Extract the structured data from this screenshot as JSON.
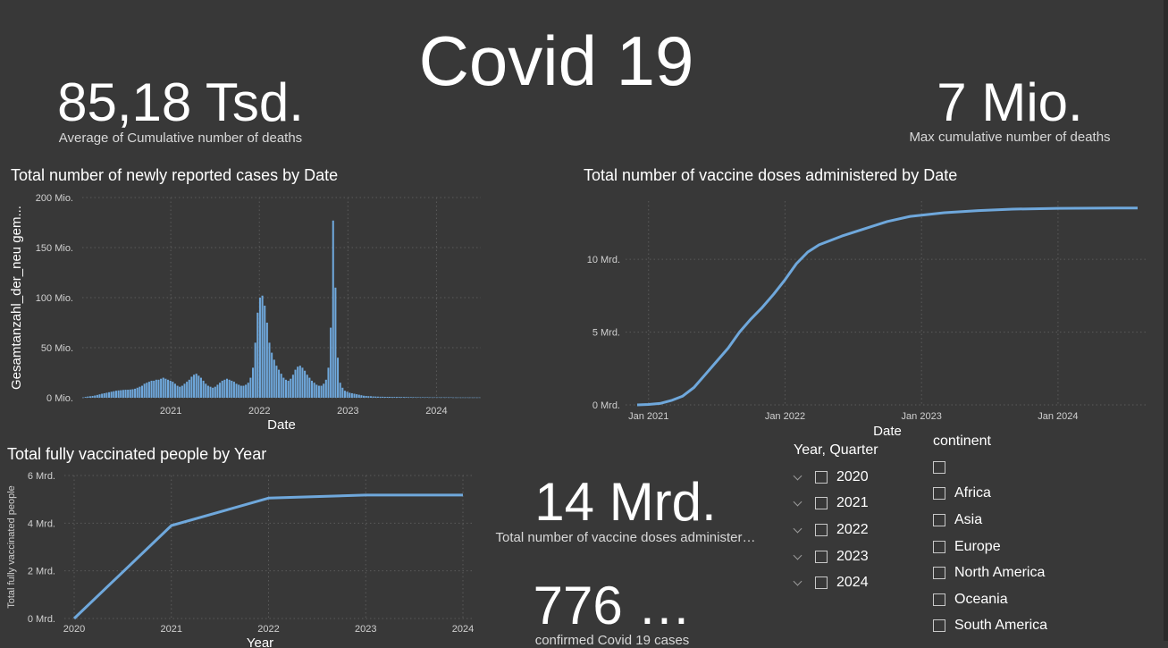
{
  "title": "Covid 19",
  "kpis": {
    "avg_deaths": {
      "value": "85,18 Tsd.",
      "label": "Average of Cumulative number of deaths"
    },
    "max_deaths": {
      "value": "7 Mio.",
      "label": "Max cumulative number of deaths"
    },
    "vaccine_doses": {
      "value": "14 Mrd.",
      "label": "Total number of vaccine doses administer…"
    },
    "confirmed_cases": {
      "value": "776 …",
      "label": "confirmed Covid 19 cases"
    }
  },
  "charts": {
    "new_cases": {
      "title": "Total number of newly reported cases by Date",
      "xlabel": "Date",
      "ylabel": "Gesamtanzahl_der_neu gem...",
      "yticks": [
        "0 Mio.",
        "50 Mio.",
        "100 Mio.",
        "150 Mio.",
        "200 Mio."
      ],
      "xticks": [
        "2021",
        "2022",
        "2023",
        "2024"
      ]
    },
    "vaccine_doses": {
      "title": "Total number of vaccine doses administered by Date",
      "xlabel": "Date",
      "yticks": [
        "0 Mrd.",
        "5 Mrd.",
        "10 Mrd."
      ],
      "xticks": [
        "Jan 2021",
        "Jan 2022",
        "Jan 2023",
        "Jan 2024"
      ]
    },
    "fully_vaccinated": {
      "title": "Total fully vaccinated people by Year",
      "xlabel": "Year",
      "ylabel": "Total fully vaccinated people",
      "yticks": [
        "0 Mrd.",
        "2 Mrd.",
        "4 Mrd.",
        "6 Mrd."
      ],
      "xticks": [
        "2020",
        "2021",
        "2022",
        "2023",
        "2024"
      ]
    }
  },
  "chart_data": [
    {
      "type": "bar",
      "title": "Total number of newly reported cases by Date",
      "xlabel": "Date",
      "ylabel": "Gesamtanzahl_der_neu gem...",
      "ylim": [
        0,
        200
      ],
      "y_unit": "Mio.",
      "x_range": [
        "2020-01",
        "2024-07"
      ],
      "grid": true,
      "series": [
        {
          "values": [
            0.3,
            0.8,
            1.2,
            1.5,
            1.8,
            2.2,
            2.8,
            3.4,
            4.0,
            4.5,
            5.0,
            5.5,
            6.0,
            6.5,
            7.0,
            7.3,
            7.5,
            7.8,
            8.0,
            8.0,
            8.2,
            8.5,
            9.0,
            10,
            11,
            12,
            14,
            15,
            16,
            17,
            17,
            18,
            18,
            19,
            20,
            19,
            18,
            17,
            16,
            14,
            12,
            11,
            12,
            14,
            16,
            18,
            21,
            23,
            24,
            22,
            20,
            17,
            14,
            12,
            11,
            10,
            11,
            13,
            15,
            17,
            18,
            19,
            18,
            17,
            16,
            14,
            13,
            12,
            12,
            13,
            15,
            20,
            30,
            55,
            85,
            100,
            102,
            92,
            75,
            55,
            45,
            38,
            32,
            28,
            24,
            20,
            18,
            17,
            19,
            23,
            28,
            31,
            32,
            30,
            27,
            23,
            20,
            17,
            15,
            13,
            12,
            12,
            14,
            18,
            30,
            70,
            177,
            110,
            40,
            15,
            10,
            7,
            6,
            5,
            4.5,
            4,
            3.5,
            3,
            2.5,
            2,
            1.8,
            1.6,
            1.5,
            1.3,
            1.2,
            1.1,
            1.0,
            1.0,
            0.9,
            0.9,
            0.9,
            0.8,
            0.8,
            0.8,
            0.8,
            0.7,
            0.7,
            0.7,
            0.6,
            0.6,
            0.6,
            0.5,
            0.5,
            0.5,
            0.5,
            0.5,
            0.5,
            0.4,
            0.4,
            0.4,
            0.4,
            0.4,
            0.4,
            0.4,
            0.4,
            0.4,
            0.4,
            0.3,
            0.3,
            0.3,
            0.3,
            0.3,
            0.3,
            0.3,
            0.3,
            0.3,
            0.3,
            0.3,
            0.3
          ]
        }
      ]
    },
    {
      "type": "line",
      "title": "Total number of vaccine doses administered by Date",
      "xlabel": "Date",
      "ylim": [
        0,
        14
      ],
      "y_unit": "Mrd.",
      "grid": true,
      "series": [
        {
          "x": [
            "2020-12",
            "2021-01",
            "2021-02",
            "2021-03",
            "2021-04",
            "2021-05",
            "2021-06",
            "2021-07",
            "2021-08",
            "2021-09",
            "2021-10",
            "2021-11",
            "2021-12",
            "2022-01",
            "2022-02",
            "2022-03",
            "2022-04",
            "2022-06",
            "2022-08",
            "2022-10",
            "2022-12",
            "2023-03",
            "2023-06",
            "2023-09",
            "2024-01",
            "2024-06",
            "2024-08"
          ],
          "y": [
            0.0,
            0.03,
            0.1,
            0.3,
            0.6,
            1.2,
            2.1,
            3.0,
            3.9,
            5.0,
            5.9,
            6.7,
            7.6,
            8.6,
            9.7,
            10.5,
            11.0,
            11.6,
            12.1,
            12.6,
            12.95,
            13.2,
            13.35,
            13.45,
            13.5,
            13.52,
            13.52
          ]
        }
      ]
    },
    {
      "type": "line",
      "title": "Total fully vaccinated people by Year",
      "xlabel": "Year",
      "ylabel": "Total fully vaccinated people",
      "ylim": [
        0,
        6
      ],
      "y_unit": "Mrd.",
      "grid": true,
      "series": [
        {
          "x": [
            2020,
            2021,
            2022,
            2023,
            2024
          ],
          "y": [
            0.0,
            3.9,
            5.05,
            5.18,
            5.18
          ]
        }
      ]
    }
  ],
  "slicers": {
    "year_quarter": {
      "title": "Year, Quarter",
      "items": [
        "2020",
        "2021",
        "2022",
        "2023",
        "2024"
      ]
    },
    "continent": {
      "title": "continent",
      "items": [
        "",
        "Africa",
        "Asia",
        "Europe",
        "North America",
        "Oceania",
        "South America"
      ]
    }
  },
  "colors": {
    "background": "#383838",
    "series": "#6fa8dc",
    "text": "#ffffff"
  }
}
